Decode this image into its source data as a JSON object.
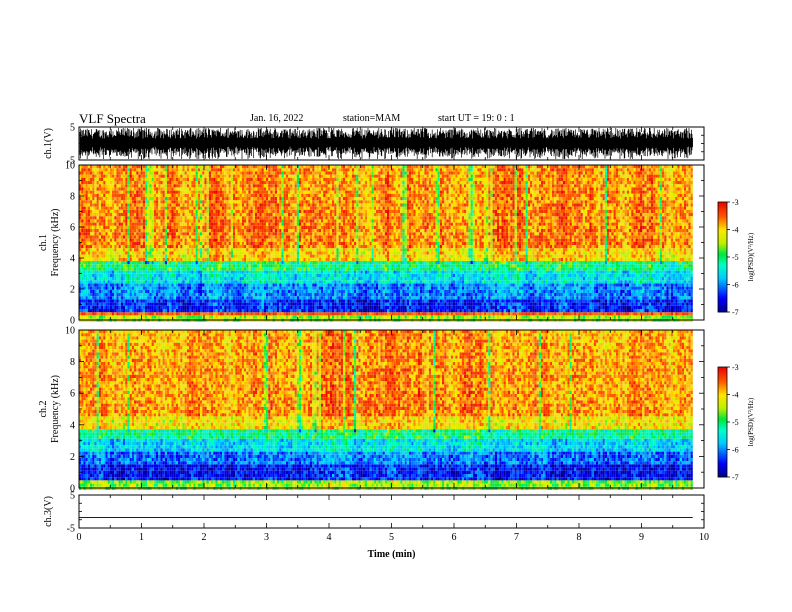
{
  "header": {
    "title": "VLF Spectra",
    "date": "Jan. 16, 2022",
    "station": "station=MAM",
    "start": "start UT =  19: 0 : 1"
  },
  "chart_data": {
    "type": "heatmap",
    "x": {
      "label": "Time (min)",
      "range": [
        0,
        10
      ],
      "ticks": [
        0,
        1,
        2,
        3,
        4,
        5,
        6,
        7,
        8,
        9,
        10
      ],
      "data_end": 9.82
    },
    "panels": [
      {
        "id": "ch1-waveform",
        "type": "line",
        "ylabel": "ch.1(V)",
        "ylim": [
          -5,
          5
        ],
        "yticks": [
          -5,
          5
        ]
      },
      {
        "id": "ch1-spectrogram",
        "type": "heatmap",
        "ylabel_channel": "ch.1",
        "ylabel": "Frequency (kHz)",
        "ylim": [
          0,
          10
        ],
        "yticks": [
          0,
          2,
          4,
          6,
          8,
          10
        ],
        "colorbar": {
          "label": "log(PSD)(V²/Hz)",
          "range": [
            -7,
            -3
          ],
          "ticks": [
            -7,
            -6,
            -5,
            -4,
            -3
          ]
        }
      },
      {
        "id": "ch2-spectrogram",
        "type": "heatmap",
        "ylabel_channel": "ch.2",
        "ylabel": "Frequency (kHz)",
        "ylim": [
          0,
          10
        ],
        "yticks": [
          0,
          2,
          4,
          6,
          8,
          10
        ],
        "colorbar": {
          "label": "log(PSD)(V²/Hz)",
          "range": [
            -7,
            -3
          ],
          "ticks": [
            -7,
            -6,
            -5,
            -4,
            -3
          ]
        }
      },
      {
        "id": "ch3-waveform",
        "type": "line",
        "ylabel": "ch.3(V)",
        "ylim": [
          -5,
          5
        ],
        "yticks": [
          -5,
          5
        ],
        "flat_value": -1.8
      }
    ]
  }
}
